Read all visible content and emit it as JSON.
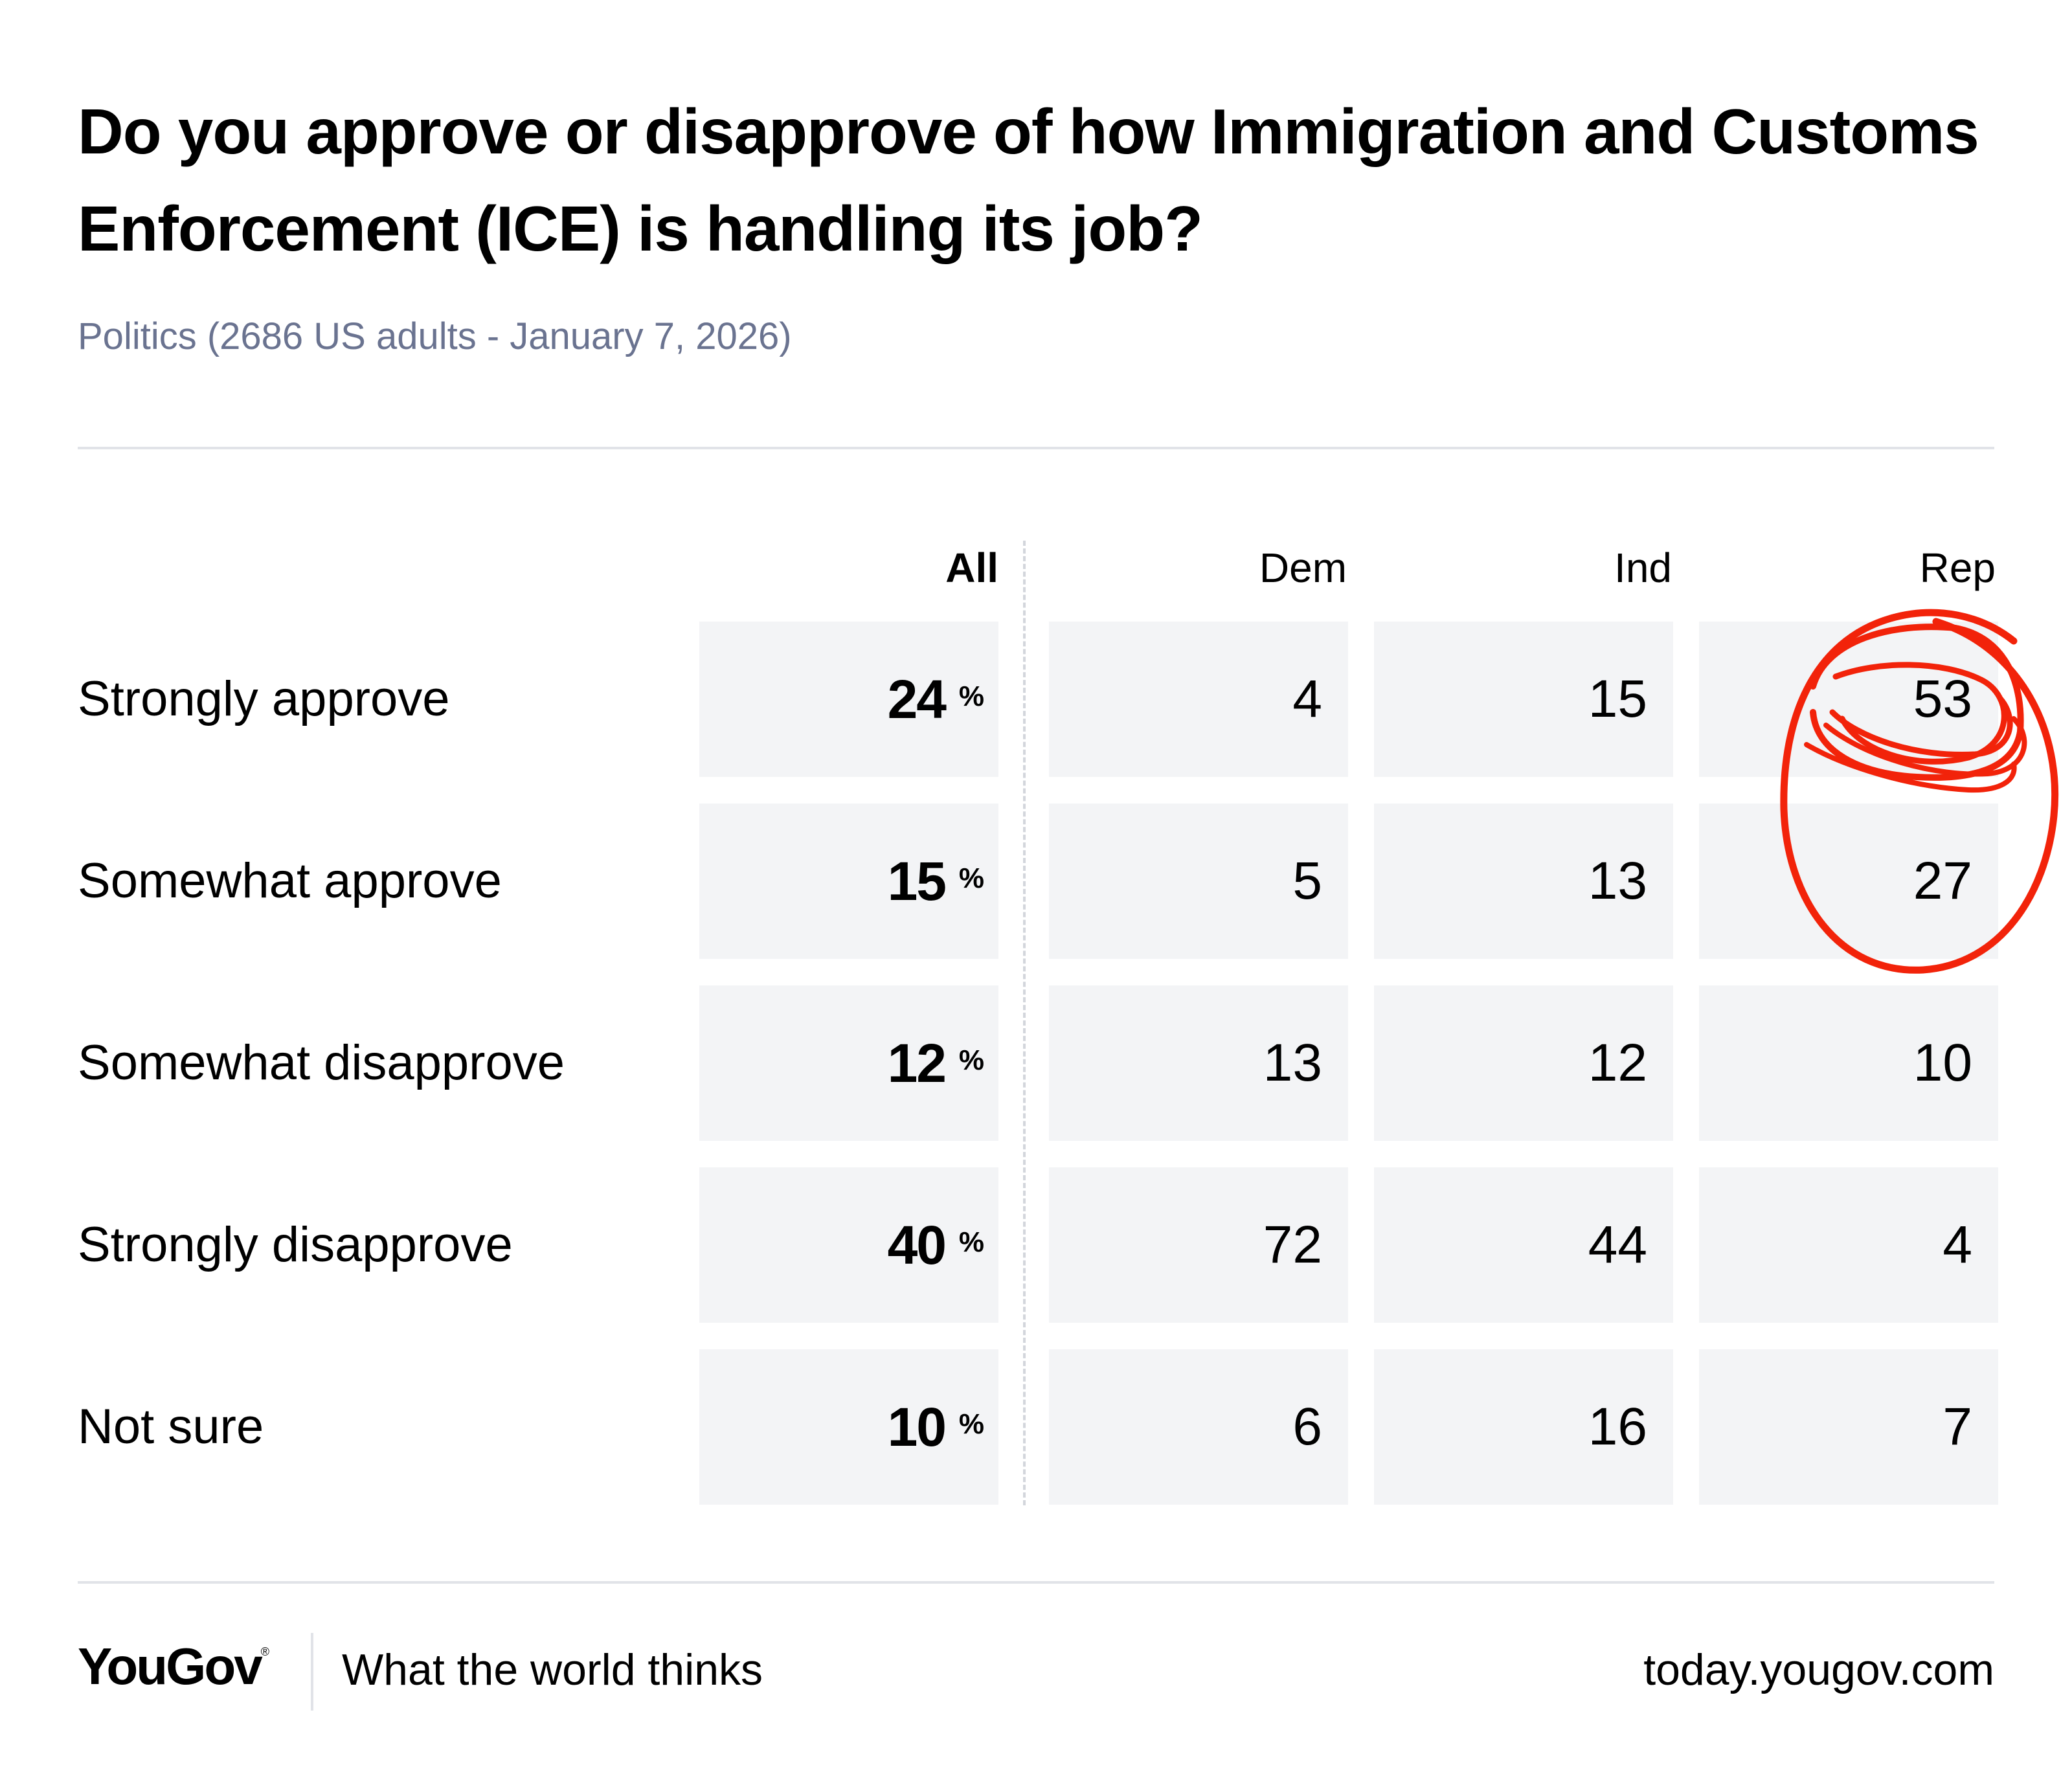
{
  "title": "Do you approve or disapprove of how Immigration and Customs Enforcement (ICE) is handling its job?",
  "subtitle": "Politics (2686 US adults - January 7, 2026)",
  "chart_data": {
    "type": "table",
    "columns": [
      "All",
      "Dem",
      "Ind",
      "Rep"
    ],
    "all_unit": "%",
    "rows": [
      {
        "label": "Strongly approve",
        "values": [
          24,
          4,
          15,
          53
        ]
      },
      {
        "label": "Somewhat approve",
        "values": [
          15,
          5,
          13,
          27
        ]
      },
      {
        "label": "Somewhat disapprove",
        "values": [
          12,
          13,
          12,
          10
        ]
      },
      {
        "label": "Strongly disapprove",
        "values": [
          40,
          72,
          44,
          4
        ]
      },
      {
        "label": "Not sure",
        "values": [
          10,
          6,
          16,
          7
        ]
      }
    ],
    "annotation": {
      "type": "hand-drawn circle",
      "color": "#f2230a",
      "highlights": "Rep: Strongly approve and Somewhat approve"
    }
  },
  "footer": {
    "brand": "YouGov",
    "brand_mark": "®",
    "tagline": "What the world thinks",
    "site": "today.yougov.com"
  }
}
